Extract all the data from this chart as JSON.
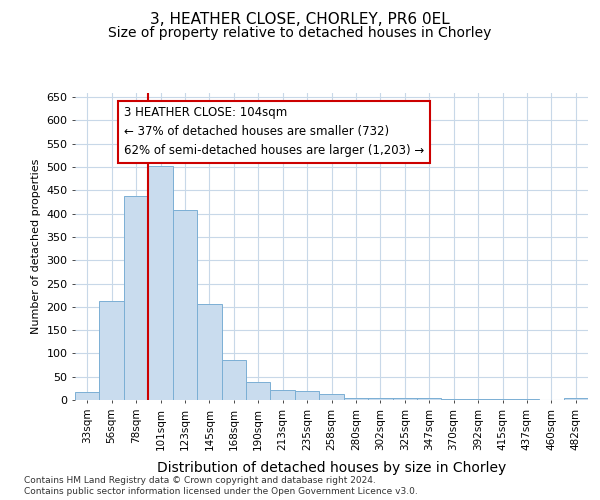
{
  "title1": "3, HEATHER CLOSE, CHORLEY, PR6 0EL",
  "title2": "Size of property relative to detached houses in Chorley",
  "xlabel": "Distribution of detached houses by size in Chorley",
  "ylabel": "Number of detached properties",
  "categories": [
    "33sqm",
    "56sqm",
    "78sqm",
    "101sqm",
    "123sqm",
    "145sqm",
    "168sqm",
    "190sqm",
    "213sqm",
    "235sqm",
    "258sqm",
    "280sqm",
    "302sqm",
    "325sqm",
    "347sqm",
    "370sqm",
    "392sqm",
    "415sqm",
    "437sqm",
    "460sqm",
    "482sqm"
  ],
  "values": [
    17,
    213,
    437,
    503,
    408,
    207,
    86,
    39,
    22,
    19,
    12,
    5,
    5,
    5,
    5,
    3,
    3,
    3,
    2,
    1,
    5
  ],
  "bar_color": "#c9dcee",
  "bar_edge_color": "#7bafd4",
  "grid_color": "#c8d8e8",
  "vline_x_index": 3,
  "vline_color": "#cc0000",
  "annotation_line1": "3 HEATHER CLOSE: 104sqm",
  "annotation_line2": "← 37% of detached houses are smaller (732)",
  "annotation_line3": "62% of semi-detached houses are larger (1,203) →",
  "annotation_box_color": "white",
  "annotation_box_edge": "#cc0000",
  "footer1": "Contains HM Land Registry data © Crown copyright and database right 2024.",
  "footer2": "Contains public sector information licensed under the Open Government Licence v3.0.",
  "ylim": [
    0,
    660
  ],
  "yticks": [
    0,
    50,
    100,
    150,
    200,
    250,
    300,
    350,
    400,
    450,
    500,
    550,
    600,
    650
  ],
  "bg_color": "#ffffff",
  "plot_bg_color": "#ffffff",
  "title1_fontsize": 11,
  "title2_fontsize": 10,
  "xlabel_fontsize": 10,
  "ylabel_fontsize": 8
}
